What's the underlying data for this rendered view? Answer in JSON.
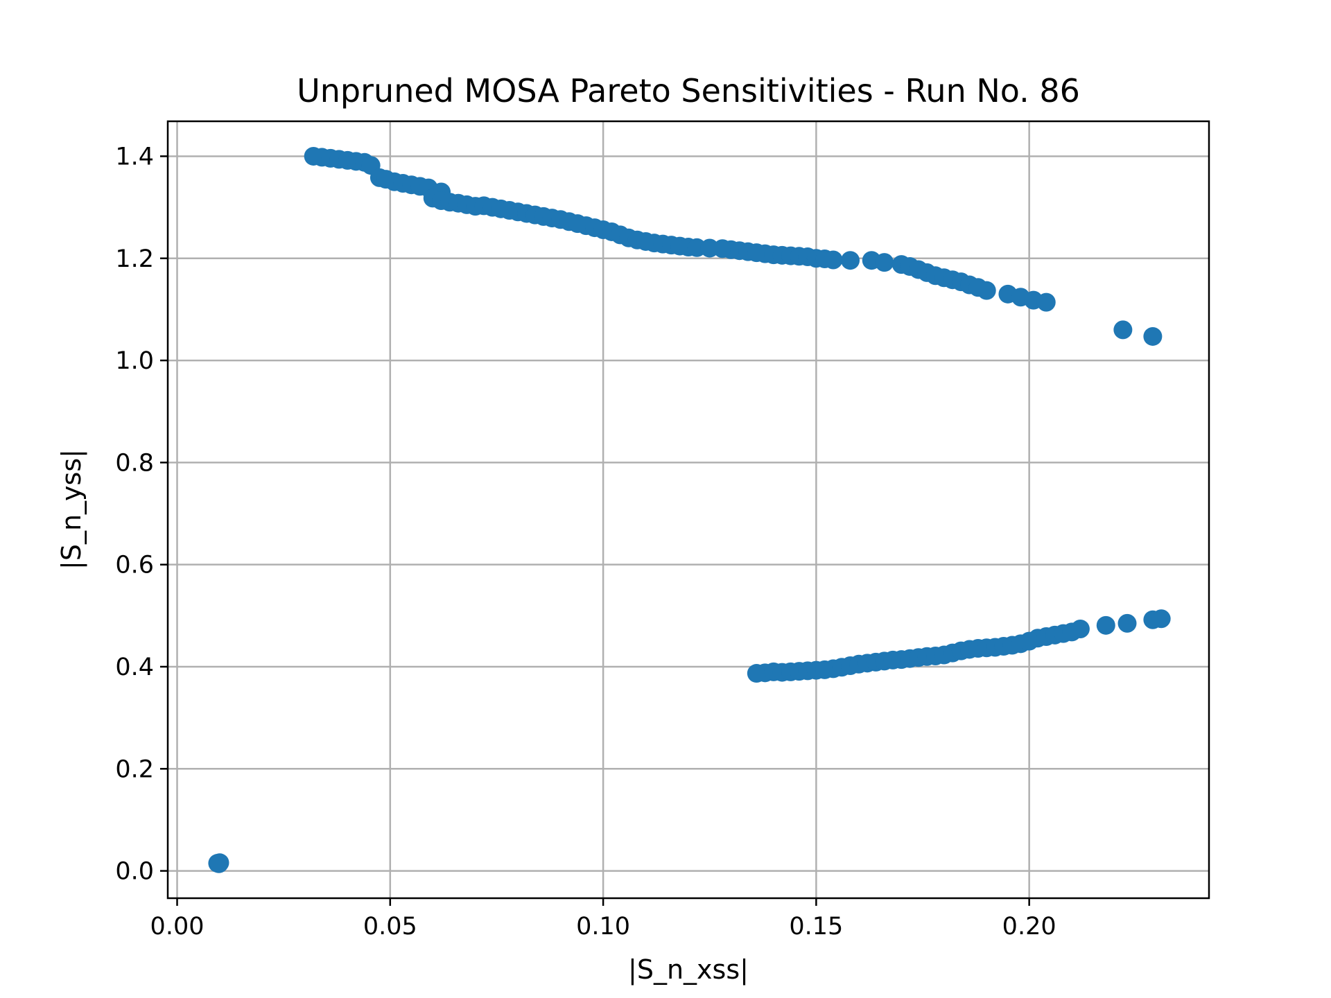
{
  "chart_data": {
    "type": "scatter",
    "title": "Unpruned MOSA Pareto Sensitivities - Run No. 86",
    "xlabel": "|S_n_xss|",
    "ylabel": "|S_n_yss|",
    "xlim": [
      -0.0022,
      0.2422
    ],
    "ylim": [
      -0.0535,
      1.4685
    ],
    "xticks": [
      0.0,
      0.05,
      0.1,
      0.15,
      0.2
    ],
    "xtick_labels": [
      "0.00",
      "0.05",
      "0.10",
      "0.15",
      "0.20"
    ],
    "yticks": [
      0.0,
      0.2,
      0.4,
      0.6,
      0.8,
      1.0,
      1.2,
      1.4
    ],
    "ytick_labels": [
      "0.0",
      "0.2",
      "0.4",
      "0.6",
      "0.8",
      "1.0",
      "1.2",
      "1.4"
    ],
    "grid": true,
    "marker_color": "#1f77b4",
    "series": [
      {
        "points": [
          [
            0.0095,
            0.015
          ],
          [
            0.01,
            0.016
          ],
          [
            0.0098,
            0.014
          ],
          [
            0.032,
            1.4
          ],
          [
            0.034,
            1.398
          ],
          [
            0.036,
            1.396
          ],
          [
            0.038,
            1.394
          ],
          [
            0.04,
            1.392
          ],
          [
            0.042,
            1.39
          ],
          [
            0.044,
            1.388
          ],
          [
            0.0455,
            1.382
          ],
          [
            0.0475,
            1.358
          ],
          [
            0.049,
            1.355
          ],
          [
            0.051,
            1.35
          ],
          [
            0.053,
            1.347
          ],
          [
            0.055,
            1.344
          ],
          [
            0.057,
            1.341
          ],
          [
            0.059,
            1.338
          ],
          [
            0.062,
            1.33
          ],
          [
            0.06,
            1.318
          ],
          [
            0.062,
            1.313
          ],
          [
            0.064,
            1.31
          ],
          [
            0.066,
            1.308
          ],
          [
            0.068,
            1.305
          ],
          [
            0.07,
            1.302
          ],
          [
            0.072,
            1.303
          ],
          [
            0.074,
            1.3
          ],
          [
            0.076,
            1.297
          ],
          [
            0.078,
            1.294
          ],
          [
            0.08,
            1.291
          ],
          [
            0.082,
            1.288
          ],
          [
            0.084,
            1.285
          ],
          [
            0.086,
            1.282
          ],
          [
            0.088,
            1.279
          ],
          [
            0.09,
            1.276
          ],
          [
            0.092,
            1.272
          ],
          [
            0.094,
            1.268
          ],
          [
            0.096,
            1.264
          ],
          [
            0.098,
            1.26
          ],
          [
            0.1,
            1.256
          ],
          [
            0.102,
            1.252
          ],
          [
            0.104,
            1.246
          ],
          [
            0.106,
            1.24
          ],
          [
            0.108,
            1.236
          ],
          [
            0.11,
            1.233
          ],
          [
            0.112,
            1.23
          ],
          [
            0.114,
            1.228
          ],
          [
            0.116,
            1.226
          ],
          [
            0.118,
            1.224
          ],
          [
            0.12,
            1.222
          ],
          [
            0.122,
            1.221
          ],
          [
            0.125,
            1.22
          ],
          [
            0.128,
            1.219
          ],
          [
            0.13,
            1.217
          ],
          [
            0.132,
            1.215
          ],
          [
            0.134,
            1.213
          ],
          [
            0.136,
            1.211
          ],
          [
            0.138,
            1.209
          ],
          [
            0.14,
            1.207
          ],
          [
            0.142,
            1.206
          ],
          [
            0.144,
            1.205
          ],
          [
            0.146,
            1.204
          ],
          [
            0.148,
            1.203
          ],
          [
            0.15,
            1.2
          ],
          [
            0.152,
            1.199
          ],
          [
            0.154,
            1.197
          ],
          [
            0.158,
            1.196
          ],
          [
            0.163,
            1.196
          ],
          [
            0.166,
            1.192
          ],
          [
            0.17,
            1.188
          ],
          [
            0.172,
            1.184
          ],
          [
            0.174,
            1.178
          ],
          [
            0.176,
            1.172
          ],
          [
            0.178,
            1.166
          ],
          [
            0.18,
            1.162
          ],
          [
            0.182,
            1.158
          ],
          [
            0.184,
            1.154
          ],
          [
            0.186,
            1.148
          ],
          [
            0.188,
            1.143
          ],
          [
            0.19,
            1.137
          ],
          [
            0.195,
            1.13
          ],
          [
            0.198,
            1.124
          ],
          [
            0.201,
            1.118
          ],
          [
            0.204,
            1.114
          ],
          [
            0.222,
            1.06
          ],
          [
            0.229,
            1.047
          ],
          [
            0.136,
            0.387
          ],
          [
            0.138,
            0.388
          ],
          [
            0.14,
            0.39
          ],
          [
            0.142,
            0.389
          ],
          [
            0.144,
            0.39
          ],
          [
            0.146,
            0.391
          ],
          [
            0.148,
            0.392
          ],
          [
            0.15,
            0.393
          ],
          [
            0.152,
            0.394
          ],
          [
            0.154,
            0.396
          ],
          [
            0.156,
            0.399
          ],
          [
            0.158,
            0.402
          ],
          [
            0.16,
            0.405
          ],
          [
            0.162,
            0.407
          ],
          [
            0.164,
            0.409
          ],
          [
            0.166,
            0.411
          ],
          [
            0.168,
            0.413
          ],
          [
            0.17,
            0.414
          ],
          [
            0.172,
            0.416
          ],
          [
            0.174,
            0.418
          ],
          [
            0.176,
            0.42
          ],
          [
            0.178,
            0.421
          ],
          [
            0.18,
            0.423
          ],
          [
            0.182,
            0.427
          ],
          [
            0.184,
            0.431
          ],
          [
            0.186,
            0.434
          ],
          [
            0.188,
            0.436
          ],
          [
            0.19,
            0.437
          ],
          [
            0.192,
            0.438
          ],
          [
            0.194,
            0.44
          ],
          [
            0.196,
            0.442
          ],
          [
            0.198,
            0.445
          ],
          [
            0.2,
            0.45
          ],
          [
            0.202,
            0.456
          ],
          [
            0.204,
            0.459
          ],
          [
            0.206,
            0.462
          ],
          [
            0.208,
            0.465
          ],
          [
            0.21,
            0.468
          ],
          [
            0.212,
            0.474
          ],
          [
            0.218,
            0.481
          ],
          [
            0.223,
            0.485
          ],
          [
            0.229,
            0.492
          ],
          [
            0.231,
            0.494
          ]
        ]
      }
    ]
  }
}
